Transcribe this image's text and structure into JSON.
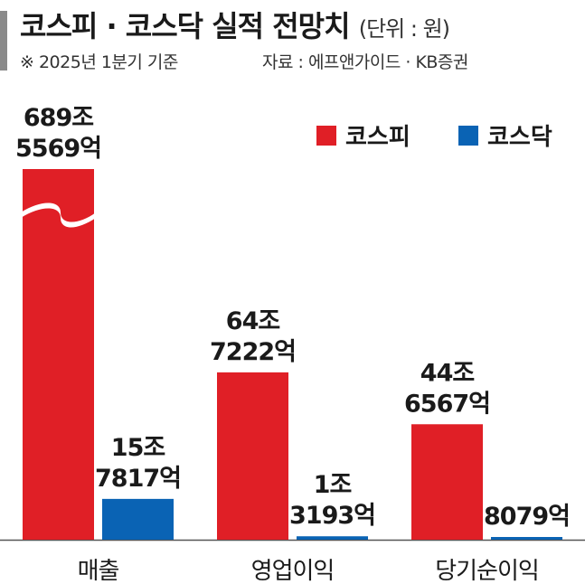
{
  "header": {
    "title": "코스피 · 코스닥 실적 전망치",
    "unit": "(단위 : 원)",
    "note": "※ 2025년 1분기 기준",
    "source": "자료 : 에프앤가이드 · KB증권"
  },
  "chart_data": {
    "type": "bar",
    "categories": [
      "매출",
      "영업이익",
      "당기순이익"
    ],
    "series": [
      {
        "name": "코스피",
        "color": "#e01f26",
        "values": [
          689.5569,
          64.7222,
          44.6567
        ],
        "labels": [
          [
            "689조",
            "5569억"
          ],
          [
            "64조",
            "7222억"
          ],
          [
            "44조",
            "6567억"
          ]
        ]
      },
      {
        "name": "코스닥",
        "color": "#0a63b4",
        "values": [
          15.7817,
          1.3193,
          0.8079
        ],
        "labels": [
          [
            "15조",
            "7817억"
          ],
          [
            "1조",
            "3193억"
          ],
          [
            "8079억"
          ]
        ]
      }
    ],
    "unit": "조 원",
    "axis_break": "매출 코스피",
    "legend_position": "top-right",
    "grid": false
  }
}
